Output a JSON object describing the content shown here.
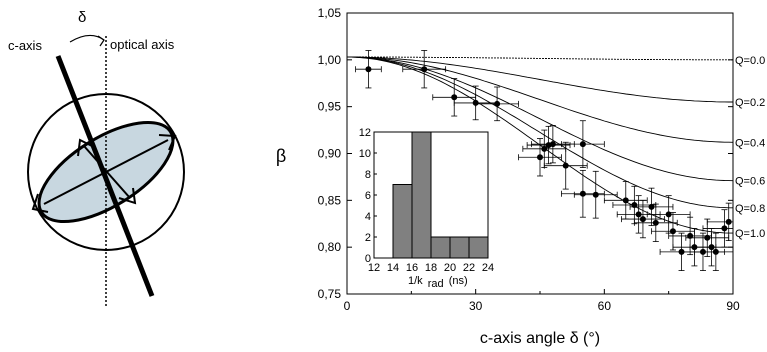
{
  "schematic": {
    "c_axis_label": "c-axis",
    "delta_label": "δ",
    "optical_axis_label": "optical axis"
  },
  "chart_data": [
    {
      "type": "scatter",
      "xlabel": "c-axis angle δ (°)",
      "ylabel": "β",
      "xlim": [
        0,
        90
      ],
      "ylim": [
        0.75,
        1.05
      ],
      "x_ticks": [
        "0",
        "30",
        "60",
        "90"
      ],
      "y_ticks": [
        "0,75",
        "0,80",
        "0,85",
        "0,90",
        "0,95",
        "1,00",
        "1,05"
      ],
      "grid": false,
      "series": [
        {
          "points": [
            {
              "x": 5,
              "y": 0.99,
              "xerr": 3,
              "yerr": 0.02
            },
            {
              "x": 18,
              "y": 0.99,
              "xerr": 5,
              "yerr": 0.02
            },
            {
              "x": 25,
              "y": 0.96,
              "xerr": 5,
              "yerr": 0.02
            },
            {
              "x": 30,
              "y": 0.954,
              "xerr": 5,
              "yerr": 0.018
            },
            {
              "x": 35,
              "y": 0.953,
              "xerr": 5,
              "yerr": 0.018
            },
            {
              "x": 45,
              "y": 0.896,
              "xerr": 5,
              "yerr": 0.02
            },
            {
              "x": 46,
              "y": 0.905,
              "xerr": 5,
              "yerr": 0.02
            },
            {
              "x": 47,
              "y": 0.909,
              "xerr": 5,
              "yerr": 0.02
            },
            {
              "x": 48,
              "y": 0.91,
              "xerr": 5,
              "yerr": 0.02
            },
            {
              "x": 51,
              "y": 0.887,
              "xerr": 5,
              "yerr": 0.025
            },
            {
              "x": 55,
              "y": 0.91,
              "xerr": 5,
              "yerr": 0.025
            },
            {
              "x": 55,
              "y": 0.857,
              "xerr": 5,
              "yerr": 0.025
            },
            {
              "x": 58,
              "y": 0.856,
              "xerr": 5,
              "yerr": 0.025
            },
            {
              "x": 65,
              "y": 0.85,
              "xerr": 5,
              "yerr": 0.02
            },
            {
              "x": 67,
              "y": 0.845,
              "xerr": 5,
              "yerr": 0.02
            },
            {
              "x": 68,
              "y": 0.835,
              "xerr": 5,
              "yerr": 0.02
            },
            {
              "x": 69,
              "y": 0.83,
              "xerr": 5,
              "yerr": 0.02
            },
            {
              "x": 71,
              "y": 0.843,
              "xerr": 5,
              "yerr": 0.02
            },
            {
              "x": 72,
              "y": 0.826,
              "xerr": 5,
              "yerr": 0.02
            },
            {
              "x": 75,
              "y": 0.835,
              "xerr": 5,
              "yerr": 0.02
            },
            {
              "x": 76,
              "y": 0.817,
              "xerr": 5,
              "yerr": 0.02
            },
            {
              "x": 78,
              "y": 0.795,
              "xerr": 5,
              "yerr": 0.02
            },
            {
              "x": 80,
              "y": 0.812,
              "xerr": 5,
              "yerr": 0.02
            },
            {
              "x": 81,
              "y": 0.8,
              "xerr": 5,
              "yerr": 0.02
            },
            {
              "x": 83,
              "y": 0.795,
              "xerr": 5,
              "yerr": 0.02
            },
            {
              "x": 84,
              "y": 0.81,
              "xerr": 5,
              "yerr": 0.02
            },
            {
              "x": 85,
              "y": 0.8,
              "xerr": 5,
              "yerr": 0.02
            },
            {
              "x": 86,
              "y": 0.795,
              "xerr": 5,
              "yerr": 0.02
            },
            {
              "x": 88,
              "y": 0.82,
              "xerr": 5,
              "yerr": 0.02
            },
            {
              "x": 89,
              "y": 0.827,
              "xerr": 5,
              "yerr": 0.02
            }
          ]
        }
      ],
      "curves": [
        {
          "label": "Q=0.0",
          "end_value": 1.0
        },
        {
          "label": "Q=0.2",
          "end_value": 0.955
        },
        {
          "label": "Q=0.4",
          "end_value": 0.912
        },
        {
          "label": "Q=0.6",
          "end_value": 0.871
        },
        {
          "label": "Q=0.8",
          "end_value": 0.842
        },
        {
          "label": "Q=1.0",
          "end_value": 0.815
        }
      ],
      "curve_start_value": 1.003
    },
    {
      "type": "bar",
      "xlabel": "1/k",
      "xlabel_subscript": "rad",
      "xlabel_unit": "(ns)",
      "xlim": [
        12,
        24
      ],
      "ylim": [
        0,
        12
      ],
      "x_ticks": [
        "12",
        "14",
        "16",
        "18",
        "20",
        "22",
        "24"
      ],
      "y_ticks": [
        "0",
        "2",
        "4",
        "6",
        "8",
        "10",
        "12"
      ],
      "bar_width": 2,
      "bar_centers": [
        15,
        17,
        19,
        21,
        23
      ],
      "values": [
        7,
        12,
        2,
        2,
        2
      ],
      "bar_color": "#808080"
    }
  ]
}
